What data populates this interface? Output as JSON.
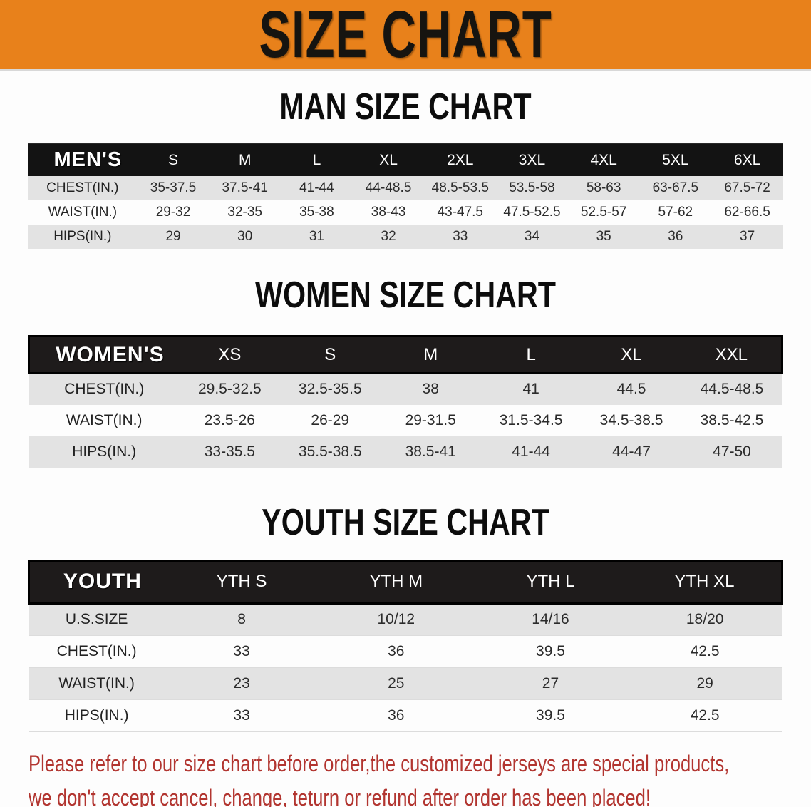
{
  "banner": {
    "title": "SIZE CHART",
    "bg_color": "#e8811b",
    "text_color": "#161410"
  },
  "sections": [
    {
      "heading": "MAN SIZE CHART",
      "table": {
        "header_label": "MEN'S",
        "columns": [
          "S",
          "M",
          "L",
          "XL",
          "2XL",
          "3XL",
          "4XL",
          "5XL",
          "6XL"
        ],
        "rows": [
          {
            "label": "CHEST(IN.)",
            "values": [
              "35-37.5",
              "37.5-41",
              "41-44",
              "44-48.5",
              "48.5-53.5",
              "53.5-58",
              "58-63",
              "63-67.5",
              "67.5-72"
            ]
          },
          {
            "label": "WAIST(IN.)",
            "values": [
              "29-32",
              "32-35",
              "35-38",
              "38-43",
              "43-47.5",
              "47.5-52.5",
              "52.5-57",
              "57-62",
              "62-66.5"
            ]
          },
          {
            "label": "HIPS(IN.)",
            "values": [
              "29",
              "30",
              "31",
              "32",
              "33",
              "34",
              "35",
              "36",
              "37"
            ]
          }
        ]
      }
    },
    {
      "heading": "WOMEN SIZE CHART",
      "table": {
        "header_label": "WOMEN'S",
        "columns": [
          "XS",
          "S",
          "M",
          "L",
          "XL",
          "XXL"
        ],
        "rows": [
          {
            "label": "CHEST(IN.)",
            "values": [
              "29.5-32.5",
              "32.5-35.5",
              "38",
              "41",
              "44.5",
              "44.5-48.5"
            ]
          },
          {
            "label": "WAIST(IN.)",
            "values": [
              "23.5-26",
              "26-29",
              "29-31.5",
              "31.5-34.5",
              "34.5-38.5",
              "38.5-42.5"
            ]
          },
          {
            "label": "HIPS(IN.)",
            "values": [
              "33-35.5",
              "35.5-38.5",
              "38.5-41",
              "41-44",
              "44-47",
              "47-50"
            ]
          }
        ]
      }
    },
    {
      "heading": "YOUTH SIZE CHART",
      "table": {
        "header_label": "YOUTH",
        "columns": [
          "YTH S",
          "YTH M",
          "YTH L",
          "YTH XL"
        ],
        "rows": [
          {
            "label": "U.S.SIZE",
            "values": [
              "8",
              "10/12",
              "14/16",
              "18/20"
            ]
          },
          {
            "label": "CHEST(IN.)",
            "values": [
              "33",
              "36",
              "39.5",
              "42.5"
            ]
          },
          {
            "label": "WAIST(IN.)",
            "values": [
              "23",
              "25",
              "27",
              "29"
            ]
          },
          {
            "label": "HIPS(IN.)",
            "values": [
              "33",
              "36",
              "39.5",
              "42.5"
            ]
          }
        ]
      }
    }
  ],
  "footer": {
    "line1": "Please refer to our size chart before order,the customized jerseys are special products,",
    "line2": "we don't accept cancel, change, teturn or refund after order has been placed!",
    "text_color": "#b23530"
  },
  "colors": {
    "banner_orange": "#e8811b",
    "header_bar_black": "#131313",
    "stripe_gray": "#e3e3e3",
    "stripe_white": "#fdfdfd",
    "body_text": "#2b2b2b",
    "notice_red": "#b23530"
  },
  "chart_data": [
    {
      "type": "table",
      "title": "MAN SIZE CHART",
      "columns": [
        "MEN'S",
        "S",
        "M",
        "L",
        "XL",
        "2XL",
        "3XL",
        "4XL",
        "5XL",
        "6XL"
      ],
      "rows": [
        [
          "CHEST(IN.)",
          "35-37.5",
          "37.5-41",
          "41-44",
          "44-48.5",
          "48.5-53.5",
          "53.5-58",
          "58-63",
          "63-67.5",
          "67.5-72"
        ],
        [
          "WAIST(IN.)",
          "29-32",
          "32-35",
          "35-38",
          "38-43",
          "43-47.5",
          "47.5-52.5",
          "52.5-57",
          "57-62",
          "62-66.5"
        ],
        [
          "HIPS(IN.)",
          "29",
          "30",
          "31",
          "32",
          "33",
          "34",
          "35",
          "36",
          "37"
        ]
      ]
    },
    {
      "type": "table",
      "title": "WOMEN SIZE CHART",
      "columns": [
        "WOMEN'S",
        "XS",
        "S",
        "M",
        "L",
        "XL",
        "XXL"
      ],
      "rows": [
        [
          "CHEST(IN.)",
          "29.5-32.5",
          "32.5-35.5",
          "38",
          "41",
          "44.5",
          "44.5-48.5"
        ],
        [
          "WAIST(IN.)",
          "23.5-26",
          "26-29",
          "29-31.5",
          "31.5-34.5",
          "34.5-38.5",
          "38.5-42.5"
        ],
        [
          "HIPS(IN.)",
          "33-35.5",
          "35.5-38.5",
          "38.5-41",
          "41-44",
          "44-47",
          "47-50"
        ]
      ]
    },
    {
      "type": "table",
      "title": "YOUTH SIZE CHART",
      "columns": [
        "YOUTH",
        "YTH S",
        "YTH M",
        "YTH L",
        "YTH XL"
      ],
      "rows": [
        [
          "U.S.SIZE",
          "8",
          "10/12",
          "14/16",
          "18/20"
        ],
        [
          "CHEST(IN.)",
          "33",
          "36",
          "39.5",
          "42.5"
        ],
        [
          "WAIST(IN.)",
          "23",
          "25",
          "27",
          "29"
        ],
        [
          "HIPS(IN.)",
          "33",
          "36",
          "39.5",
          "42.5"
        ]
      ]
    }
  ]
}
